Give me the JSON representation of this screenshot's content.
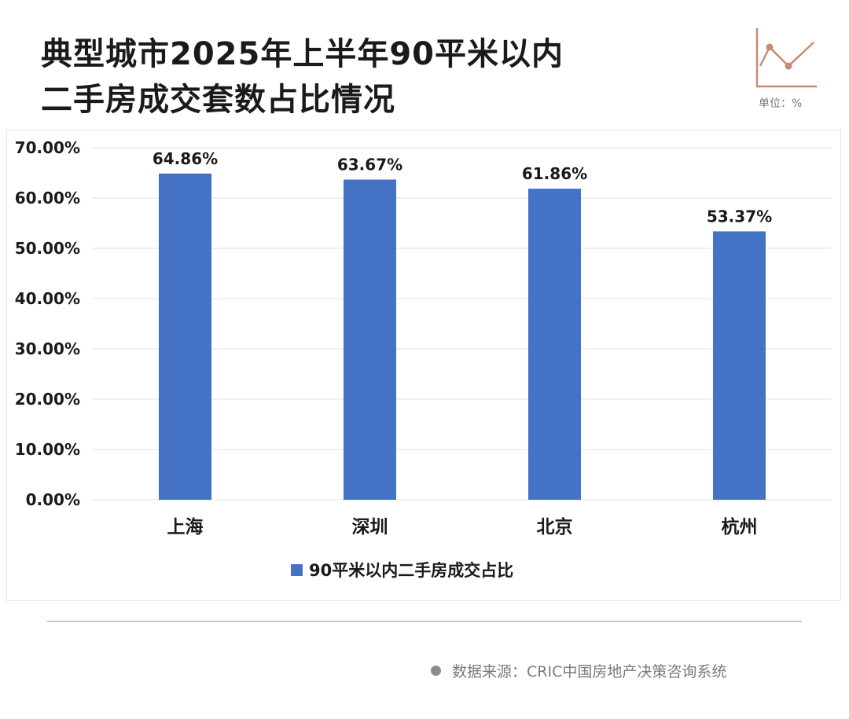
{
  "title_line1": "典型城市2025年上半年90平米以内",
  "title_line2": "二手房成交套数占比情况",
  "unit_label": "单位：%",
  "source_text": "数据来源：CRIC中国房地产决策咨询系统",
  "colors": {
    "bar": "#4472c4",
    "accent_icon": "#c98a73",
    "grid": "#e0e0e0"
  },
  "chart_data": {
    "type": "bar",
    "categories": [
      "上海",
      "深圳",
      "北京",
      "杭州"
    ],
    "series": [
      {
        "name": "90平米以内二手房成交占比",
        "values": [
          64.86,
          63.67,
          61.86,
          53.37
        ]
      }
    ],
    "data_labels": [
      "64.86%",
      "63.67%",
      "61.86%",
      "53.37%"
    ],
    "yticks": [
      "0.00%",
      "10.00%",
      "20.00%",
      "30.00%",
      "40.00%",
      "50.00%",
      "60.00%",
      "70.00%"
    ],
    "ylim": [
      0,
      70
    ],
    "xlabel": "",
    "ylabel": "",
    "grid": true,
    "legend": "bottom-center"
  }
}
